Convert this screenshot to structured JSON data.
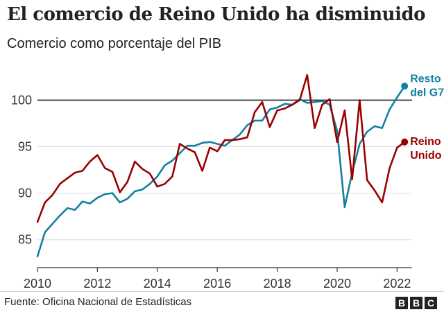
{
  "chart_data": {
    "type": "line",
    "title": "El comercio de Reino Unido ha disminuido",
    "subtitle": "Comercio como porcentaje del PIB",
    "xlim": [
      2010,
      2022.5
    ],
    "ylim": [
      82,
      104.5
    ],
    "x_ticks": [
      "2010",
      "2012",
      "2014",
      "2016",
      "2018",
      "2020",
      "2022"
    ],
    "y_ticks": [
      "85",
      "90",
      "95",
      "100"
    ],
    "reference_line": 100,
    "grid": "horizontal",
    "series": [
      {
        "name": "Resto del G7",
        "label_lines": [
          "Resto",
          "del G7"
        ],
        "color": "#1380a1",
        "x": [
          2010.0,
          2010.25,
          2010.5,
          2010.75,
          2011.0,
          2011.25,
          2011.5,
          2011.75,
          2012.0,
          2012.25,
          2012.5,
          2012.75,
          2013.0,
          2013.25,
          2013.5,
          2013.75,
          2014.0,
          2014.25,
          2014.5,
          2014.75,
          2015.0,
          2015.25,
          2015.5,
          2015.75,
          2016.0,
          2016.25,
          2016.5,
          2016.75,
          2017.0,
          2017.25,
          2017.5,
          2017.75,
          2018.0,
          2018.25,
          2018.5,
          2018.75,
          2019.0,
          2019.25,
          2019.5,
          2019.75,
          2020.0,
          2020.25,
          2020.5,
          2020.75,
          2021.0,
          2021.25,
          2021.5,
          2021.75,
          2022.0,
          2022.25
        ],
        "values": [
          83.2,
          85.8,
          86.7,
          87.6,
          88.4,
          88.2,
          89.1,
          88.9,
          89.5,
          89.9,
          90.0,
          89.0,
          89.4,
          90.2,
          90.4,
          91.0,
          91.8,
          93.0,
          93.5,
          94.3,
          95.1,
          95.1,
          95.4,
          95.5,
          95.3,
          95.1,
          95.7,
          96.3,
          97.3,
          97.8,
          97.8,
          99.0,
          99.2,
          99.6,
          99.5,
          100.1,
          99.7,
          99.8,
          99.9,
          99.5,
          96.7,
          88.5,
          92.2,
          95.3,
          96.6,
          97.2,
          97.0,
          99.0,
          100.3,
          101.5
        ]
      },
      {
        "name": "Reino Unido",
        "label_lines": [
          "Reino",
          "Unido"
        ],
        "color": "#990000",
        "x": [
          2010.0,
          2010.25,
          2010.5,
          2010.75,
          2011.0,
          2011.25,
          2011.5,
          2011.75,
          2012.0,
          2012.25,
          2012.5,
          2012.75,
          2013.0,
          2013.25,
          2013.5,
          2013.75,
          2014.0,
          2014.25,
          2014.5,
          2014.75,
          2015.0,
          2015.25,
          2015.5,
          2015.75,
          2016.0,
          2016.25,
          2016.5,
          2016.75,
          2017.0,
          2017.25,
          2017.5,
          2017.75,
          2018.0,
          2018.25,
          2018.5,
          2018.75,
          2019.0,
          2019.25,
          2019.5,
          2019.75,
          2020.0,
          2020.25,
          2020.5,
          2020.75,
          2021.0,
          2021.25,
          2021.5,
          2021.75,
          2022.0,
          2022.25
        ],
        "values": [
          86.9,
          89.0,
          89.8,
          91.0,
          91.6,
          92.2,
          92.4,
          93.4,
          94.1,
          92.7,
          92.3,
          90.1,
          91.2,
          93.4,
          92.6,
          92.1,
          90.7,
          91.0,
          91.8,
          95.3,
          94.8,
          94.4,
          92.4,
          94.9,
          94.5,
          95.7,
          95.7,
          95.8,
          96.0,
          98.7,
          99.8,
          97.1,
          98.9,
          99.1,
          99.5,
          100.0,
          102.7,
          97.0,
          99.5,
          100.1,
          95.5,
          98.9,
          91.5,
          100.0,
          91.4,
          90.3,
          89.0,
          92.7,
          94.9,
          95.5
        ]
      }
    ]
  },
  "footer": {
    "source": "Fuente: Oficina Nacional de Estadísticas",
    "logo_letters": [
      "B",
      "B",
      "C"
    ]
  }
}
